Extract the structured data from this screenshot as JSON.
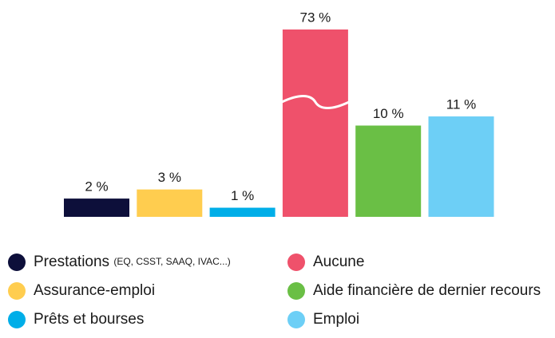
{
  "chart_data": {
    "type": "bar",
    "categories": [
      "Prestations (EQ, CSST, SAAQ, IVAC...)",
      "Assurance-emploi",
      "Prêts et bourses",
      "Aucune",
      "Aide financière de dernier recours",
      "Emploi"
    ],
    "values": [
      2,
      3,
      1,
      73,
      10,
      11
    ],
    "value_labels": [
      "2 %",
      "3 %",
      "1 %",
      "73 %",
      "10 %",
      "11 %"
    ],
    "colors": [
      "#0d0f3a",
      "#ffcd4f",
      "#00aee8",
      "#ef516b",
      "#6abf45",
      "#6dcff6"
    ],
    "broken_axis": true
  }
}
